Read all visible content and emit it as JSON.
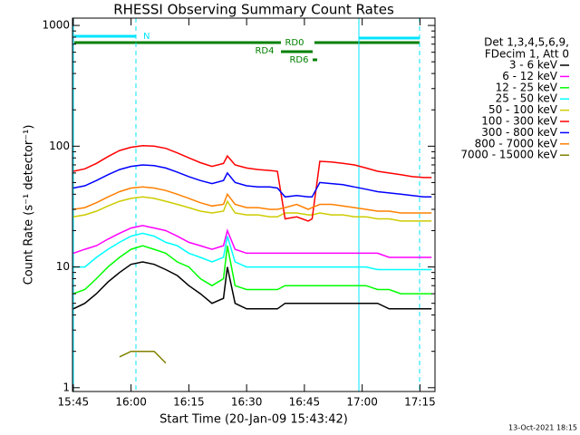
{
  "chart_data": {
    "type": "line",
    "title": "RHESSI Observing Summary Count Rates",
    "x_label": "Start Time (20-Jan-09 15:43:42)",
    "y_label": "Count Rate (s⁻¹ detector⁻¹)",
    "legend_header": [
      "Det 1,3,4,5,6,9,",
      "FDecim 1, Att 0"
    ],
    "annotations": [
      "N",
      "RD0",
      "RD4",
      "RD6"
    ],
    "footer": "13-Oct-2021 18:15",
    "log_y": true,
    "legend_position": "right",
    "xlim": [
      944.8,
      1038.9
    ],
    "xticks": [
      {
        "value": 945,
        "label": "15:45"
      },
      {
        "value": 960,
        "label": "16:00"
      },
      {
        "value": 975,
        "label": "16:15"
      },
      {
        "value": 990,
        "label": "16:30"
      },
      {
        "value": 1005,
        "label": "16:45"
      },
      {
        "value": 1020,
        "label": "17:00"
      },
      {
        "value": 1035,
        "label": "17:15"
      }
    ],
    "ylim": [
      0.93,
      1150
    ],
    "yticks": [
      1,
      10,
      100,
      1000
    ],
    "x": [
      945,
      948,
      951,
      954,
      957,
      960,
      963,
      966,
      969,
      972,
      975,
      978,
      981,
      984,
      985,
      987,
      990,
      993,
      996,
      998,
      1000,
      1003,
      1006,
      1007,
      1009,
      1012,
      1015,
      1018,
      1021,
      1024,
      1027,
      1030,
      1033,
      1036,
      1038
    ],
    "series": [
      {
        "name": "3 - 6 keV",
        "color": "#000000",
        "values": [
          4.5,
          5,
          6,
          7.5,
          9,
          10.5,
          11,
          10.5,
          9.5,
          8.5,
          7,
          6,
          5,
          5.5,
          10,
          5,
          4.5,
          4.5,
          4.5,
          4.5,
          5,
          5,
          5,
          5,
          5,
          5,
          5,
          5,
          5,
          5,
          4.5,
          4.5,
          4.5,
          4.5,
          4.5
        ]
      },
      {
        "name": "6 - 12 keV",
        "color": "#ff00ff",
        "values": [
          13,
          14,
          15,
          17,
          19,
          21,
          22,
          21,
          20,
          18,
          16,
          15,
          14,
          15,
          20,
          14,
          13,
          13,
          13,
          13,
          13,
          13,
          13,
          13,
          13,
          13,
          13,
          13,
          13,
          13,
          12,
          12,
          12,
          12,
          12
        ]
      },
      {
        "name": "12 - 25 keV",
        "color": "#00ff00",
        "values": [
          6,
          6.5,
          8,
          10,
          12,
          14,
          15,
          14,
          13,
          11,
          10,
          8,
          7,
          8,
          15,
          7,
          6.5,
          6.5,
          6.5,
          6.5,
          7,
          7,
          7,
          7,
          7,
          7,
          7,
          7,
          7,
          6.5,
          6.5,
          6,
          6,
          6,
          6
        ]
      },
      {
        "name": "25 - 50 keV",
        "color": "#00ffff",
        "values": [
          10,
          10,
          12,
          14,
          16,
          18,
          19,
          18,
          16,
          15,
          13,
          12,
          11,
          12,
          18,
          11,
          10,
          10,
          10,
          10,
          10,
          10,
          10,
          10,
          10,
          10,
          10,
          10,
          10,
          9.5,
          9.5,
          9.5,
          9.5,
          9.5,
          9.5
        ]
      },
      {
        "name": "50 - 100 keV",
        "color": "#cccc00",
        "values": [
          26,
          27,
          29,
          32,
          35,
          37,
          38,
          37,
          35,
          33,
          31,
          29,
          28,
          29,
          35,
          28,
          27,
          27,
          26,
          26,
          28,
          28,
          27,
          27,
          28,
          27,
          27,
          26,
          26,
          25,
          25,
          24,
          24,
          24,
          24
        ]
      },
      {
        "name": "100 - 300 keV",
        "color": "#ff0000",
        "values": [
          62,
          65,
          72,
          82,
          92,
          98,
          101,
          100,
          96,
          88,
          80,
          73,
          68,
          72,
          83,
          70,
          66,
          64,
          63,
          62,
          25,
          26,
          24,
          25,
          75,
          74,
          72,
          70,
          66,
          62,
          60,
          58,
          56,
          55,
          55
        ]
      },
      {
        "name": "300 - 800 keV",
        "color": "#0000ff",
        "values": [
          45,
          47,
          52,
          58,
          64,
          68,
          70,
          69,
          66,
          61,
          56,
          52,
          49,
          52,
          60,
          50,
          47,
          46,
          46,
          45,
          38,
          39,
          38,
          38,
          50,
          49,
          48,
          46,
          44,
          42,
          41,
          40,
          39,
          38,
          38
        ]
      },
      {
        "name": "800 - 7000 keV",
        "color": "#ff8000",
        "values": [
          30,
          31,
          34,
          38,
          42,
          45,
          46,
          45,
          43,
          40,
          37,
          34,
          32,
          33,
          40,
          33,
          31,
          31,
          30,
          30,
          31,
          33,
          30,
          31,
          33,
          33,
          32,
          31,
          30,
          29,
          29,
          28,
          28,
          28,
          28
        ]
      },
      {
        "name": "7000 - 15000 keV",
        "color": "#808000",
        "values": [
          null,
          null,
          null,
          null,
          1.8,
          2,
          2,
          2,
          1.6,
          null,
          null,
          null,
          null,
          null,
          null,
          null,
          null,
          null,
          null,
          null,
          null,
          null,
          null,
          null,
          null,
          null,
          null,
          null,
          null,
          null,
          null,
          null,
          null,
          null,
          null
        ]
      }
    ]
  }
}
